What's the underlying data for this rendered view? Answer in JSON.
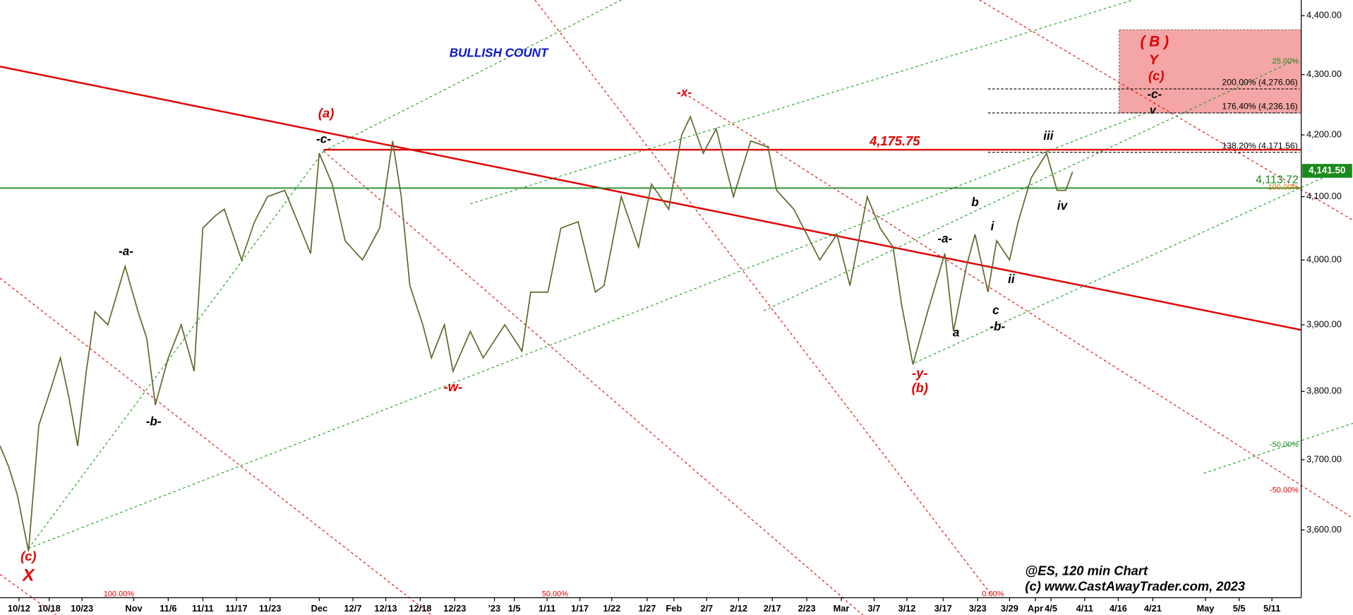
{
  "chart_data": {
    "type": "line",
    "log_y": true,
    "xlim": [
      0,
      754
    ],
    "ylim": [
      3506,
      4427
    ],
    "xticks": [
      {
        "value": 11,
        "label": "10/12"
      },
      {
        "value": 28.5,
        "label": "10/18"
      },
      {
        "value": 47.5,
        "label": "10/23"
      },
      {
        "value": 77.5,
        "label": "Nov"
      },
      {
        "value": 97.5,
        "label": "11/6"
      },
      {
        "value": 117.5,
        "label": "11/11"
      },
      {
        "value": 137,
        "label": "11/17"
      },
      {
        "value": 156.5,
        "label": "11/23"
      },
      {
        "value": 185,
        "label": "Dec"
      },
      {
        "value": 204.5,
        "label": "12/7"
      },
      {
        "value": 223.5,
        "label": "12/13"
      },
      {
        "value": 243.5,
        "label": "12/18"
      },
      {
        "value": 263.5,
        "label": "12/23"
      },
      {
        "value": 286.5,
        "label": "'23"
      },
      {
        "value": 298,
        "label": "1/5"
      },
      {
        "value": 317,
        "label": "1/11"
      },
      {
        "value": 336,
        "label": "1/17"
      },
      {
        "value": 354.5,
        "label": "1/22"
      },
      {
        "value": 375,
        "label": "1/27"
      },
      {
        "value": 390.5,
        "label": "Feb"
      },
      {
        "value": 409.5,
        "label": "2/7"
      },
      {
        "value": 428,
        "label": "2/12"
      },
      {
        "value": 447.5,
        "label": "2/17"
      },
      {
        "value": 467.5,
        "label": "2/23"
      },
      {
        "value": 487.5,
        "label": "Mar"
      },
      {
        "value": 506.5,
        "label": "3/7"
      },
      {
        "value": 525.5,
        "label": "3/12"
      },
      {
        "value": 546.5,
        "label": "3/17"
      },
      {
        "value": 566.5,
        "label": "3/23"
      },
      {
        "value": 585,
        "label": "3/29"
      },
      {
        "value": 600,
        "label": "Apr"
      },
      {
        "value": 609,
        "label": "4/5"
      },
      {
        "value": 628.5,
        "label": "4/11"
      },
      {
        "value": 648,
        "label": "4/16"
      },
      {
        "value": 668,
        "label": "4/21"
      },
      {
        "value": 698.5,
        "label": "May"
      },
      {
        "value": 718,
        "label": "5/5"
      },
      {
        "value": 737,
        "label": "5/11"
      }
    ],
    "yticks": [
      {
        "value": 3600,
        "label": "3,600.00"
      },
      {
        "value": 3700,
        "label": "3,700.00"
      },
      {
        "value": 3800,
        "label": "3,800.00"
      },
      {
        "value": 3900,
        "label": "3,900.00"
      },
      {
        "value": 4000,
        "label": "4,000.00"
      },
      {
        "value": 4100,
        "label": "4,100.00"
      },
      {
        "value": 4200,
        "label": "4,200.00"
      },
      {
        "value": 4300,
        "label": "4,300.00"
      },
      {
        "value": 4400,
        "label": "4,400.00"
      }
    ],
    "series": [
      {
        "name": "@ES",
        "color": "#5f6a2a",
        "x": [
          0,
          5,
          10,
          16.5,
          22.5,
          29,
          35,
          40,
          45,
          50,
          55,
          62.5,
          72.5,
          80,
          85,
          90,
          97.5,
          105,
          112.5,
          117.5,
          125,
          130,
          140,
          147.5,
          155,
          165,
          172.5,
          180,
          185,
          192.5,
          200,
          210,
          220,
          227.5,
          232.5,
          237.5,
          245,
          250,
          257.5,
          262.5,
          272.5,
          280,
          292.5,
          302.5,
          307.5,
          317.5,
          325,
          335,
          345,
          350,
          360,
          370,
          377.5,
          387.5,
          395,
          400,
          407.5,
          415,
          425,
          435,
          445,
          450,
          460,
          467.5,
          475,
          485,
          492.5,
          502.5,
          510,
          517.5,
          522.5,
          529,
          537.5,
          547.5,
          552.5,
          560,
          565,
          572.5,
          577.5,
          585,
          590,
          597.5,
          606.5,
          612.5,
          617.5,
          621.5
        ],
        "values": [
          3720,
          3690,
          3650,
          3570,
          3750,
          3800,
          3850,
          3790,
          3720,
          3830,
          3920,
          3900,
          3990,
          3920,
          3880,
          3780,
          3850,
          3900,
          3830,
          4050,
          4070,
          4080,
          4000,
          4060,
          4100,
          4110,
          4060,
          4010,
          4170,
          4120,
          4030,
          4000,
          4050,
          4190,
          4100,
          3960,
          3900,
          3850,
          3900,
          3830,
          3890,
          3850,
          3900,
          3860,
          3950,
          3950,
          4050,
          4060,
          3950,
          3960,
          4100,
          4020,
          4120,
          4080,
          4200,
          4230,
          4170,
          4210,
          4100,
          4190,
          4180,
          4110,
          4080,
          4040,
          4000,
          4040,
          3960,
          4100,
          4050,
          4020,
          3930,
          3840,
          3920,
          4010,
          3890,
          3990,
          4040,
          3950,
          4030,
          4000,
          4060,
          4130,
          4170,
          4110,
          4110,
          4140
        ]
      }
    ],
    "last_price": {
      "value": 4141.5,
      "label": "4,141.50",
      "color": "#1a8a1a"
    },
    "levels": [
      {
        "value": 4175.75,
        "label": "4,175.75",
        "color": "#e00000"
      },
      {
        "value": 4113.72,
        "label": "4,113.72",
        "color": "#1a8a1a"
      }
    ],
    "fib_levels": [
      {
        "value": 4276.06,
        "label": "200.00% (4,276.06)"
      },
      {
        "value": 4236.16,
        "label": "176.40% (4,236.16)"
      },
      {
        "value": 4171.56,
        "label": "138.20% (4,171.56)"
      }
    ],
    "target_zone": {
      "low": 4236,
      "high": 4376,
      "start": 648.5,
      "color": "#f4a6a6"
    },
    "annotations": [
      {
        "text": "BULLISH COUNT",
        "color": "#0a14d0"
      },
      {
        "text": "(a)",
        "color": "#e00000"
      },
      {
        "text": "-c-",
        "color": "#000"
      },
      {
        "text": "-x-",
        "color": "#e00000"
      },
      {
        "text": "( B )",
        "color": "#e00000"
      },
      {
        "text": "Y",
        "color": "#e00000"
      },
      {
        "text": "(c)",
        "color": "#e00000"
      },
      {
        "text": "-c-",
        "color": "#000"
      },
      {
        "text": "v",
        "color": "#000"
      },
      {
        "text": "-a-",
        "color": "#000"
      },
      {
        "text": "-b-",
        "color": "#000"
      },
      {
        "text": "(c)",
        "color": "#e00000"
      },
      {
        "text": "X",
        "color": "#e00000"
      },
      {
        "text": "-w-",
        "color": "#e00000"
      },
      {
        "text": "-y-",
        "color": "#e00000"
      },
      {
        "text": "(b)",
        "color": "#e00000"
      },
      {
        "text": "-a-",
        "color": "#000"
      },
      {
        "text": "b",
        "color": "#000"
      },
      {
        "text": "i",
        "color": "#000"
      },
      {
        "text": "ii",
        "color": "#000"
      },
      {
        "text": "a",
        "color": "#000"
      },
      {
        "text": "c",
        "color": "#000"
      },
      {
        "text": "-b-",
        "color": "#000"
      },
      {
        "text": "iii",
        "color": "#000"
      },
      {
        "text": "iv",
        "color": "#000"
      },
      {
        "text": "25.00%",
        "color": "#1a8a1a"
      },
      {
        "text": "-50.00%",
        "color": "#1a8a1a"
      },
      {
        "text": "-50.00%",
        "color": "#e00000"
      },
      {
        "text": "100.00%",
        "color": "#e00000"
      },
      {
        "text": "50.00%",
        "color": "#e00000"
      },
      {
        "text": "0.00%",
        "color": "#e00000"
      },
      {
        "text": "100.00%",
        "color": "#e07000"
      },
      {
        "text": "@ES, 120 min Chart",
        "color": "#000"
      },
      {
        "text": "(c) www.CastAwayTrader.com, 2023",
        "color": "#000"
      }
    ]
  }
}
